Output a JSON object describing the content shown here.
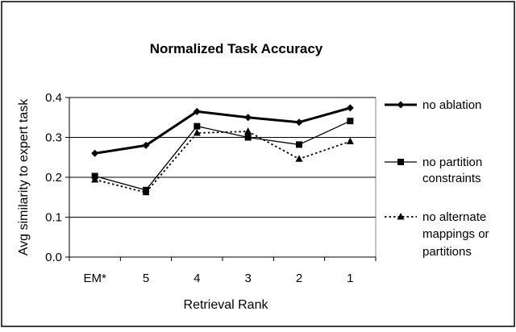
{
  "chart_data": {
    "type": "line",
    "title": "Normalized Task Accuracy",
    "xlabel": "Retrieval Rank",
    "ylabel": "Avg similarity to expert task",
    "categories": [
      "EM*",
      "5",
      "4",
      "3",
      "2",
      "1"
    ],
    "ylim": [
      0,
      0.4
    ],
    "yticks": [
      "0.0",
      "0.1",
      "0.2",
      "0.3",
      "0.4"
    ],
    "grid": "horizontal major gridlines",
    "legend_position": "right",
    "series": [
      {
        "name": "no ablation",
        "legend_lines": [
          "no ablation"
        ],
        "values": [
          0.26,
          0.28,
          0.365,
          0.35,
          0.338,
          0.374
        ],
        "marker": "diamond",
        "line_style": "solid-thick"
      },
      {
        "name": "no partition constraints",
        "legend_lines": [
          "no partition",
          "constraints"
        ],
        "values": [
          0.203,
          0.168,
          0.328,
          0.3,
          0.282,
          0.341
        ],
        "marker": "square",
        "line_style": "solid-thin"
      },
      {
        "name": "no alternate mappings or partitions",
        "legend_lines": [
          "no alternate",
          "mappings or",
          "partitions"
        ],
        "values": [
          0.194,
          0.162,
          0.311,
          0.315,
          0.246,
          0.29
        ],
        "marker": "triangle",
        "line_style": "dotted"
      }
    ]
  }
}
